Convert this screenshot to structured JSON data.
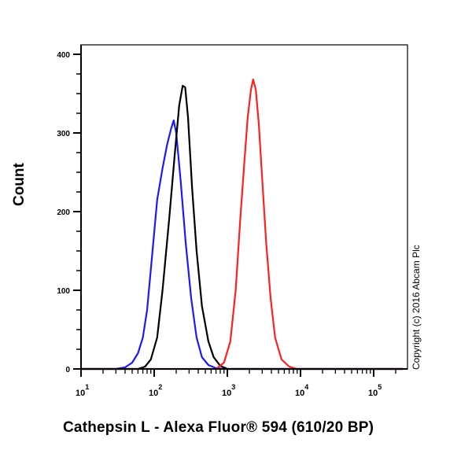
{
  "chart_data": {
    "type": "line",
    "title": "",
    "xlabel": "Cathepsin L - Alexa Fluor® 594 (610/20 BP)",
    "ylabel": "Count",
    "xscale": "log",
    "xlim": [
      10,
      250000
    ],
    "ylim": [
      0,
      400
    ],
    "x_ticks": [
      {
        "value": 10,
        "base": "10",
        "exp": "1"
      },
      {
        "value": 100,
        "base": "10",
        "exp": "2"
      },
      {
        "value": 1000,
        "base": "10",
        "exp": "3"
      },
      {
        "value": 10000,
        "base": "10",
        "exp": "4"
      },
      {
        "value": 100000,
        "base": "10",
        "exp": "5"
      }
    ],
    "y_ticks": [
      0,
      100,
      200,
      300,
      400
    ],
    "grid": false,
    "legend": null,
    "annotation": "Copyright (c) 2016 Abcam Plc",
    "series": [
      {
        "name": "Blue histogram",
        "color": "#1a1aff",
        "x": [
          10,
          30,
          40,
          50,
          60,
          70,
          80,
          95,
          110,
          130,
          150,
          170,
          185,
          200,
          230,
          270,
          320,
          380,
          450,
          550,
          700,
          900,
          250000
        ],
        "y": [
          0,
          0,
          2,
          8,
          20,
          40,
          75,
          150,
          215,
          255,
          285,
          305,
          316,
          300,
          240,
          160,
          90,
          40,
          15,
          5,
          1,
          0,
          0
        ]
      },
      {
        "name": "Black histogram",
        "color": "#000000",
        "x": [
          10,
          60,
          75,
          90,
          110,
          130,
          160,
          190,
          220,
          245,
          265,
          290,
          330,
          380,
          450,
          550,
          650,
          800,
          1000,
          250000
        ],
        "y": [
          0,
          0,
          3,
          12,
          40,
          100,
          190,
          270,
          335,
          360,
          358,
          320,
          230,
          150,
          80,
          35,
          15,
          4,
          0,
          0
        ]
      },
      {
        "name": "Red histogram",
        "color": "#ff2020",
        "x": [
          10,
          700,
          900,
          1100,
          1300,
          1500,
          1700,
          1900,
          2100,
          2250,
          2450,
          2700,
          3000,
          3400,
          3900,
          4500,
          5500,
          7000,
          9000,
          250000
        ],
        "y": [
          0,
          0,
          8,
          35,
          100,
          190,
          260,
          320,
          355,
          368,
          355,
          310,
          240,
          160,
          90,
          40,
          12,
          3,
          0,
          0
        ]
      }
    ]
  },
  "labels": {
    "ylabel": "Count",
    "xlabel": "Cathepsin L - Alexa Fluor® 594 (610/20 BP)",
    "copyright": "Copyright (c) 2016 Abcam Plc"
  }
}
